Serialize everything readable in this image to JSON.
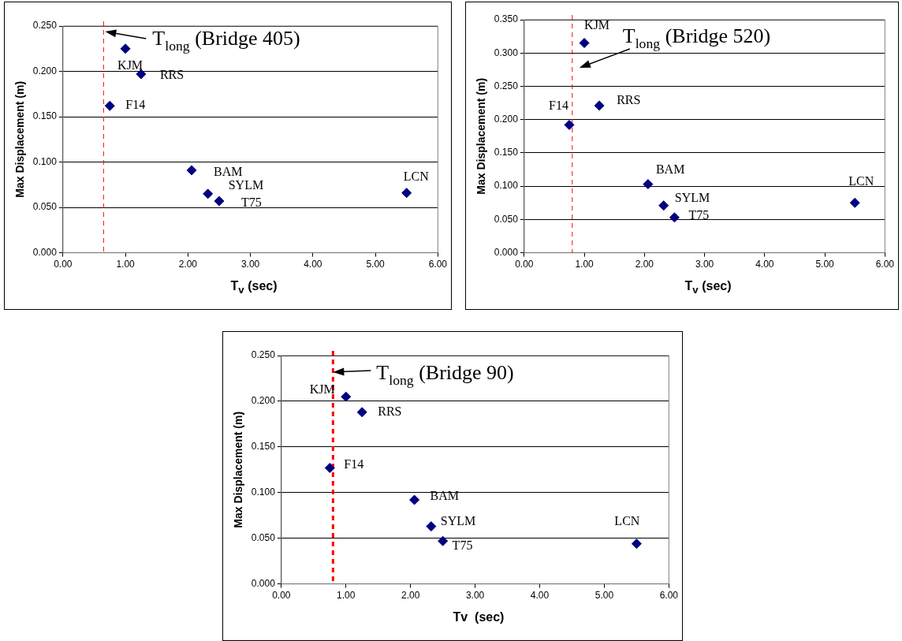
{
  "chart_data": [
    {
      "type": "scatter",
      "x": [
        0.75,
        1.0,
        1.25,
        2.06,
        2.32,
        2.5,
        5.5
      ],
      "values": [
        0.162,
        0.225,
        0.197,
        0.091,
        0.065,
        0.057,
        0.066
      ],
      "color": "#000080",
      "marker": "diamond",
      "xlabel": "T$_{v}$ (sec)",
      "ylabel": "Max Displacement (m)",
      "xlim": [
        0,
        6
      ],
      "ylim": [
        0,
        0.25
      ],
      "xticks": [
        {
          "value": 0,
          "label": "0.00"
        },
        {
          "value": 1,
          "label": "1.00"
        },
        {
          "value": 2,
          "label": "2.00"
        },
        {
          "value": 3,
          "label": "3.00"
        },
        {
          "value": 4,
          "label": "4.00"
        },
        {
          "value": 5,
          "label": "5.00"
        },
        {
          "value": 6,
          "label": "6.00"
        }
      ],
      "yticks": [
        {
          "value": 0,
          "label": "0.000"
        },
        {
          "value": 0.05,
          "label": "0.050"
        },
        {
          "value": 0.1,
          "label": "0.100"
        },
        {
          "value": 0.15,
          "label": "0.150"
        },
        {
          "value": 0.2,
          "label": "0.200"
        },
        {
          "value": 0.25,
          "label": "0.250"
        }
      ],
      "grid": "y",
      "legend": false,
      "ref_lines": [
        {
          "axis": "x",
          "value": 0.65,
          "label": "T$_{long}$ (Bridge 405)",
          "color": "#ff0000",
          "line_style": "dashed"
        }
      ],
      "annotations": [
        {
          "text": "F14",
          "x": 0.75,
          "y": 0.162
        },
        {
          "text": "KJM",
          "x": 1.0,
          "y": 0.225
        },
        {
          "text": "RRS",
          "x": 1.25,
          "y": 0.197
        },
        {
          "text": "BAM",
          "x": 2.06,
          "y": 0.091
        },
        {
          "text": "SYLM",
          "x": 2.32,
          "y": 0.065
        },
        {
          "text": "T75",
          "x": 2.5,
          "y": 0.057
        },
        {
          "text": "LCN",
          "x": 5.5,
          "y": 0.066
        }
      ]
    },
    {
      "type": "scatter",
      "x": [
        0.75,
        1.0,
        1.25,
        2.06,
        2.32,
        2.5,
        5.5
      ],
      "values": [
        0.192,
        0.315,
        0.221,
        0.103,
        0.071,
        0.053,
        0.075
      ],
      "color": "#000080",
      "marker": "diamond",
      "xlabel": "T$_{v}$ (sec)",
      "ylabel": "Max Displacement (m)",
      "xlim": [
        0,
        6
      ],
      "ylim": [
        0,
        0.35
      ],
      "xticks": [
        {
          "value": 0,
          "label": "0.00"
        },
        {
          "value": 1,
          "label": "1.00"
        },
        {
          "value": 2,
          "label": "2.00"
        },
        {
          "value": 3,
          "label": "3.00"
        },
        {
          "value": 4,
          "label": "4.00"
        },
        {
          "value": 5,
          "label": "5.00"
        },
        {
          "value": 6,
          "label": "6.00"
        }
      ],
      "yticks": [
        {
          "value": 0,
          "label": "0.000"
        },
        {
          "value": 0.05,
          "label": "0.050"
        },
        {
          "value": 0.1,
          "label": "0.100"
        },
        {
          "value": 0.15,
          "label": "0.150"
        },
        {
          "value": 0.2,
          "label": "0.200"
        },
        {
          "value": 0.25,
          "label": "0.250"
        },
        {
          "value": 0.3,
          "label": "0.300"
        },
        {
          "value": 0.35,
          "label": "0.350"
        }
      ],
      "grid": "y",
      "legend": false,
      "ref_lines": [
        {
          "axis": "x",
          "value": 0.8,
          "label": "T$_{long}$ (Bridge 520)",
          "color": "#ff0000",
          "line_style": "dashed"
        }
      ],
      "annotations": [
        {
          "text": "F14",
          "x": 0.75,
          "y": 0.192
        },
        {
          "text": "KJM",
          "x": 1.0,
          "y": 0.315
        },
        {
          "text": "RRS",
          "x": 1.25,
          "y": 0.221
        },
        {
          "text": "BAM",
          "x": 2.06,
          "y": 0.103
        },
        {
          "text": "SYLM",
          "x": 2.32,
          "y": 0.071
        },
        {
          "text": "T75",
          "x": 2.5,
          "y": 0.053
        },
        {
          "text": "LCN",
          "x": 5.5,
          "y": 0.075
        }
      ]
    },
    {
      "type": "scatter",
      "x": [
        0.75,
        1.0,
        1.25,
        2.06,
        2.32,
        2.5,
        5.5
      ],
      "values": [
        0.127,
        0.205,
        0.188,
        0.092,
        0.063,
        0.047,
        0.044
      ],
      "color": "#000080",
      "marker": "diamond",
      "xlabel": "Tv  (sec)",
      "ylabel": "Max Displacement (m)",
      "xlim": [
        0,
        6
      ],
      "ylim": [
        0,
        0.25
      ],
      "xticks": [
        {
          "value": 0,
          "label": "0.00"
        },
        {
          "value": 1,
          "label": "1.00"
        },
        {
          "value": 2,
          "label": "2.00"
        },
        {
          "value": 3,
          "label": "3.00"
        },
        {
          "value": 4,
          "label": "4.00"
        },
        {
          "value": 5,
          "label": "5.00"
        },
        {
          "value": 6,
          "label": "6.00"
        }
      ],
      "yticks": [
        {
          "value": 0,
          "label": "0.000"
        },
        {
          "value": 0.05,
          "label": "0.050"
        },
        {
          "value": 0.1,
          "label": "0.100"
        },
        {
          "value": 0.15,
          "label": "0.150"
        },
        {
          "value": 0.2,
          "label": "0.200"
        },
        {
          "value": 0.25,
          "label": "0.250"
        }
      ],
      "grid": "y",
      "legend": false,
      "ref_lines": [
        {
          "axis": "x",
          "value": 0.8,
          "label": "T$_{long}$ (Bridge 90)",
          "color": "#ff0000",
          "line_style": "dashed"
        }
      ],
      "annotations": [
        {
          "text": "F14",
          "x": 0.75,
          "y": 0.127
        },
        {
          "text": "KJM",
          "x": 1.0,
          "y": 0.205
        },
        {
          "text": "RRS",
          "x": 1.25,
          "y": 0.188
        },
        {
          "text": "BAM",
          "x": 2.06,
          "y": 0.092
        },
        {
          "text": "SYLM",
          "x": 2.32,
          "y": 0.063
        },
        {
          "text": "T75",
          "x": 2.5,
          "y": 0.047
        },
        {
          "text": "LCN",
          "x": 5.5,
          "y": 0.044
        }
      ]
    }
  ]
}
